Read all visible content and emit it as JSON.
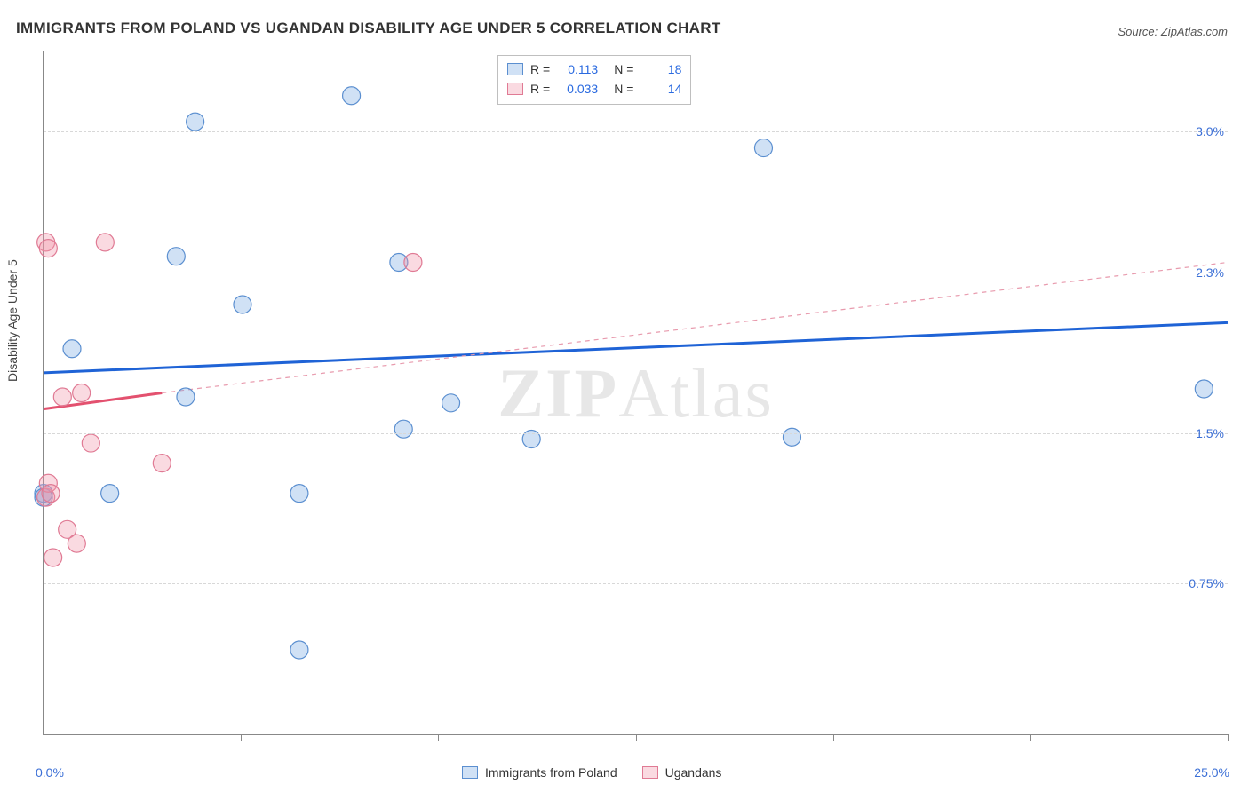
{
  "title": "IMMIGRANTS FROM POLAND VS UGANDAN DISABILITY AGE UNDER 5 CORRELATION CHART",
  "source": "Source: ZipAtlas.com",
  "watermark": {
    "bold": "ZIP",
    "rest": "Atlas"
  },
  "ylabel": "Disability Age Under 5",
  "chart": {
    "type": "scatter",
    "background_color": "#ffffff",
    "grid_color": "#d8d8d8",
    "axis_color": "#888888",
    "xlim": [
      0.0,
      25.0
    ],
    "ylim": [
      0.0,
      3.4
    ],
    "x_ticks": [
      0.0,
      4.17,
      8.33,
      12.5,
      16.67,
      20.83,
      25.0
    ],
    "x_tick_labels": {
      "0": "0.0%",
      "25": "25.0%"
    },
    "y_gridlines": [
      0.75,
      1.5,
      2.3,
      3.0
    ],
    "y_tick_labels": [
      "0.75%",
      "1.5%",
      "2.3%",
      "3.0%"
    ],
    "marker_radius": 10,
    "marker_stroke_width": 1.2,
    "series": [
      {
        "name": "Immigrants from Poland",
        "key": "poland",
        "fill": "rgba(120,170,225,0.35)",
        "stroke": "#5b8fd0",
        "R": "0.113",
        "N": "18",
        "points": [
          [
            0.0,
            1.2
          ],
          [
            0.0,
            1.18
          ],
          [
            0.6,
            1.92
          ],
          [
            1.4,
            1.2
          ],
          [
            2.8,
            2.38
          ],
          [
            3.0,
            1.68
          ],
          [
            3.2,
            3.05
          ],
          [
            4.2,
            2.14
          ],
          [
            5.4,
            1.2
          ],
          [
            5.4,
            0.42
          ],
          [
            6.5,
            3.18
          ],
          [
            7.5,
            2.35
          ],
          [
            7.6,
            1.52
          ],
          [
            8.6,
            1.65
          ],
          [
            10.3,
            1.47
          ],
          [
            15.2,
            2.92
          ],
          [
            15.8,
            1.48
          ],
          [
            24.5,
            1.72
          ]
        ],
        "trend": {
          "x1": 0.0,
          "y1": 1.8,
          "x2": 25.0,
          "y2": 2.05,
          "color": "#1f63d6",
          "dash": "",
          "width": 3
        },
        "trend_ext": null
      },
      {
        "name": "Ugandans",
        "key": "ugandans",
        "fill": "rgba(240,150,170,0.35)",
        "stroke": "#e07a94",
        "R": "0.033",
        "N": "14",
        "points": [
          [
            0.05,
            2.45
          ],
          [
            0.05,
            1.18
          ],
          [
            0.1,
            2.42
          ],
          [
            0.1,
            1.25
          ],
          [
            0.15,
            1.2
          ],
          [
            0.2,
            0.88
          ],
          [
            0.4,
            1.68
          ],
          [
            0.5,
            1.02
          ],
          [
            0.7,
            0.95
          ],
          [
            0.8,
            1.7
          ],
          [
            1.0,
            1.45
          ],
          [
            1.3,
            2.45
          ],
          [
            2.5,
            1.35
          ],
          [
            7.8,
            2.35
          ]
        ],
        "trend": {
          "x1": 0.0,
          "y1": 1.62,
          "x2": 2.5,
          "y2": 1.7,
          "color": "#e3516f",
          "dash": "",
          "width": 3
        },
        "trend_ext": {
          "x1": 2.5,
          "y1": 1.7,
          "x2": 25.0,
          "y2": 2.35,
          "color": "#e89aad",
          "dash": "5,5",
          "width": 1.2
        }
      }
    ]
  },
  "stat_legend": {
    "rows": [
      {
        "swatch_fill": "rgba(120,170,225,0.35)",
        "swatch_stroke": "#5b8fd0",
        "R_label": "R =",
        "R": "0.113",
        "N_label": "N =",
        "N": "18"
      },
      {
        "swatch_fill": "rgba(240,150,170,0.35)",
        "swatch_stroke": "#e07a94",
        "R_label": "R =",
        "R": "0.033",
        "N_label": "N =",
        "N": "14"
      }
    ]
  },
  "bottom_legend": {
    "items": [
      {
        "swatch_fill": "rgba(120,170,225,0.35)",
        "swatch_stroke": "#5b8fd0",
        "label": "Immigrants from Poland"
      },
      {
        "swatch_fill": "rgba(240,150,170,0.35)",
        "swatch_stroke": "#e07a94",
        "label": "Ugandans"
      }
    ]
  }
}
